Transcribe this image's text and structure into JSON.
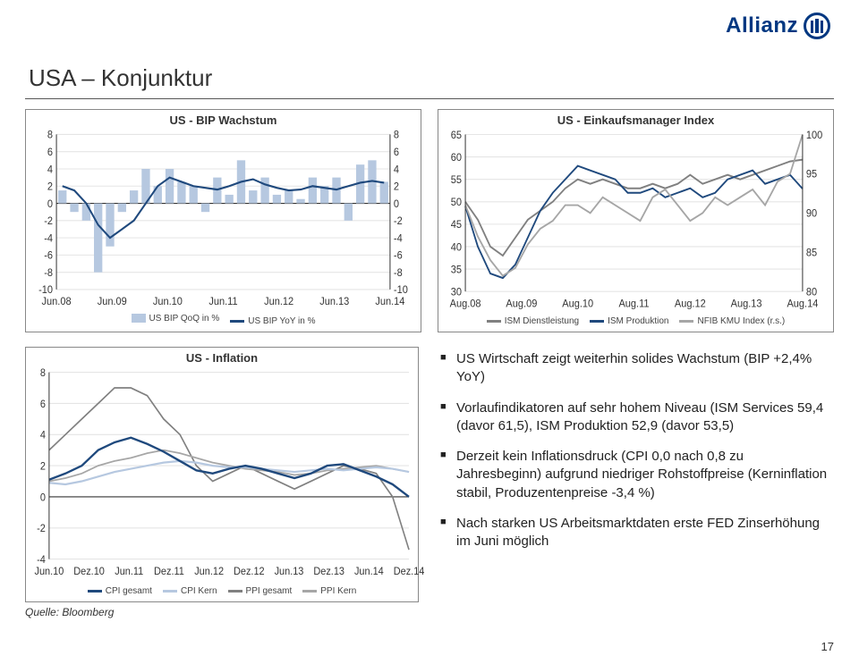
{
  "brand": {
    "name": "Allianz",
    "color": "#003781"
  },
  "slide_title": "USA – Konjunktur",
  "source_text": "Quelle: Bloomberg",
  "page_number": "17",
  "colors": {
    "bar_qoq": "#b6c8e0",
    "line_primary": "#1f497d",
    "line_secondary": "#808080",
    "line_tertiary": "#a6a6a6",
    "line_cpi_total": "#1f497d",
    "line_cpi_core": "#b6c8e0",
    "line_ppi_total": "#808080",
    "line_ppi_core": "#a6a6a6",
    "grid": "#e5e5e5",
    "axis": "#333333",
    "background": "#ffffff"
  },
  "chart1": {
    "type": "bar+line",
    "title": "US - BIP Wachstum",
    "x_labels": [
      "Jun.08",
      "Jun.09",
      "Jun.10",
      "Jun.11",
      "Jun.12",
      "Jun.13",
      "Jun.14"
    ],
    "y_left": {
      "min": -10,
      "max": 8,
      "step": 2
    },
    "y_right": {
      "min": -10,
      "max": 8,
      "step": 2
    },
    "legend": [
      {
        "label": "US BIP QoQ in %",
        "kind": "bar",
        "color_key": "bar_qoq"
      },
      {
        "label": "US BIP YoY in %",
        "kind": "line",
        "color_key": "line_primary"
      }
    ],
    "bars_qoq": [
      1.5,
      -1,
      -2,
      -8,
      -5,
      -1,
      1.5,
      4,
      2,
      4,
      2.5,
      2,
      -1,
      3,
      1,
      5,
      1.5,
      3,
      1,
      1.5,
      0.5,
      3,
      2,
      3,
      -2,
      4.5,
      5,
      2.5
    ],
    "line_yoy": [
      2,
      1.5,
      0,
      -2.5,
      -4,
      -3,
      -2,
      0,
      2,
      3,
      2.5,
      2,
      1.8,
      1.6,
      2,
      2.5,
      2.8,
      2.2,
      1.8,
      1.5,
      1.6,
      2,
      1.8,
      1.6,
      2,
      2.4,
      2.6,
      2.4
    ]
  },
  "chart2": {
    "type": "line",
    "title": "US - Einkaufsmanager Index",
    "x_labels": [
      "Aug.08",
      "Aug.09",
      "Aug.10",
      "Aug.11",
      "Aug.12",
      "Aug.13",
      "Aug.14"
    ],
    "y_left": {
      "min": 30,
      "max": 65,
      "step": 5
    },
    "y_right": {
      "min": 80,
      "max": 100,
      "step": 5
    },
    "legend": [
      {
        "label": "ISM Dienstleistung",
        "kind": "line",
        "color_key": "line_secondary"
      },
      {
        "label": "ISM Produktion",
        "kind": "line",
        "color_key": "line_primary"
      },
      {
        "label": "NFIB KMU Index (r.s.)",
        "kind": "line",
        "color_key": "line_tertiary"
      }
    ],
    "series_ism_service": [
      50,
      46,
      40,
      38,
      42,
      46,
      48,
      50,
      53,
      55,
      54,
      55,
      54,
      53,
      53,
      54,
      53,
      54,
      56,
      54,
      55,
      56,
      55,
      56,
      57,
      58,
      59,
      59.4
    ],
    "series_ism_prod": [
      49,
      40,
      34,
      33,
      36,
      42,
      48,
      52,
      55,
      58,
      57,
      56,
      55,
      52,
      52,
      53,
      51,
      52,
      53,
      51,
      52,
      55,
      56,
      57,
      54,
      55,
      56,
      52.9
    ],
    "series_nfib": [
      91,
      87,
      84,
      82,
      83,
      86,
      88,
      89,
      91,
      91,
      90,
      92,
      91,
      90,
      89,
      92,
      93,
      91,
      89,
      90,
      92,
      91,
      92,
      93,
      91,
      94,
      95,
      100
    ]
  },
  "chart3": {
    "type": "line",
    "title": "US - Inflation",
    "x_labels": [
      "Jun.10",
      "Dez.10",
      "Jun.11",
      "Dez.11",
      "Jun.12",
      "Dez.12",
      "Jun.13",
      "Dez.13",
      "Jun.14",
      "Dez.14"
    ],
    "y_left": {
      "min": -4,
      "max": 8,
      "step": 2
    },
    "legend": [
      {
        "label": "CPI gesamt",
        "kind": "line",
        "color_key": "line_cpi_total"
      },
      {
        "label": "CPI Kern",
        "kind": "line",
        "color_key": "line_cpi_core"
      },
      {
        "label": "PPI gesamt",
        "kind": "line",
        "color_key": "line_ppi_total"
      },
      {
        "label": "PPI Kern",
        "kind": "line",
        "color_key": "line_ppi_core"
      }
    ],
    "series_cpi_total": [
      1.1,
      1.5,
      2,
      3,
      3.5,
      3.8,
      3.4,
      2.9,
      2.3,
      1.7,
      1.5,
      1.8,
      2,
      1.8,
      1.5,
      1.2,
      1.5,
      2,
      2.1,
      1.7,
      1.3,
      0.8,
      0
    ],
    "series_cpi_core": [
      0.9,
      0.8,
      1,
      1.3,
      1.6,
      1.8,
      2,
      2.2,
      2.3,
      2.2,
      2,
      1.9,
      1.9,
      1.8,
      1.7,
      1.6,
      1.7,
      1.8,
      1.7,
      1.8,
      1.9,
      1.8,
      1.6
    ],
    "series_ppi_total": [
      3,
      4,
      5,
      6,
      7,
      7,
      6.5,
      5,
      4,
      2,
      1,
      1.5,
      2,
      1.5,
      1,
      0.5,
      1,
      1.5,
      2,
      1.8,
      1.5,
      0,
      -3.4
    ],
    "series_ppi_core": [
      1,
      1.2,
      1.5,
      2,
      2.3,
      2.5,
      2.8,
      3,
      2.8,
      2.5,
      2.2,
      2,
      1.8,
      1.7,
      1.6,
      1.4,
      1.5,
      1.7,
      1.8,
      1.9,
      2,
      1.8,
      1.6
    ]
  },
  "bullets": [
    "US Wirtschaft zeigt weiterhin solides Wachstum (BIP +2,4% YoY)",
    "Vorlaufindikatoren auf sehr hohem Niveau (ISM Services 59,4 (davor 61,5), ISM Produktion 52,9 (davor 53,5)",
    "Derzeit kein Inflationsdruck (CPI 0,0 nach 0,8 zu Jahresbeginn) aufgrund niedriger Rohstoffpreise (Kerninflation stabil, Produzentenpreise -3,4 %)",
    "Nach starken US Arbeitsmarktdaten erste FED Zinserhöhung im Juni möglich"
  ]
}
